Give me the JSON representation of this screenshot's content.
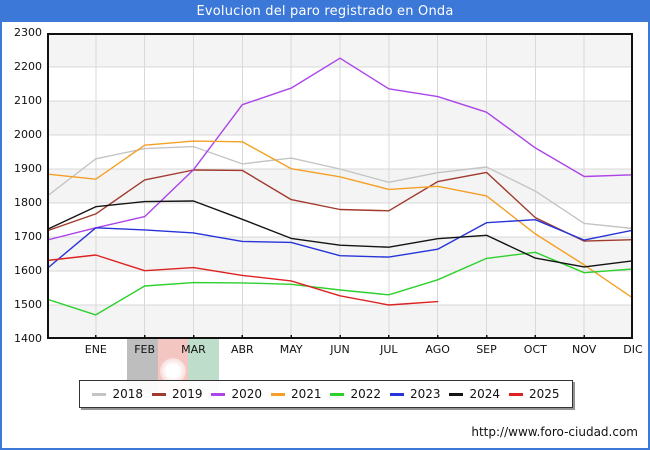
{
  "window": {
    "title": "Evolucion del paro registrado en Onda",
    "footer_url": "http://www.foro-ciudad.com",
    "accent_color": "#3b78d8"
  },
  "chart_data": {
    "type": "line",
    "title": "Evolucion del paro registrado en Onda",
    "x_tick_labels": [
      "ENE",
      "FEB",
      "MAR",
      "ABR",
      "MAY",
      "JUN",
      "JUL",
      "AGO",
      "SEP",
      "OCT",
      "NOV",
      "DIC"
    ],
    "note": "First point of each series sits on the left axis and represents December of the previous year",
    "y_axis": {
      "min": 1400,
      "max": 2300,
      "step": 100
    },
    "grid": true,
    "legend_position": "bottom",
    "plot_bands": {
      "shaded": "#f4f4f4",
      "plain": "#ffffff"
    },
    "grid_color": "#d9d9d9",
    "series": [
      {
        "name": "2018",
        "color": "#c4c4c4",
        "values": [
          1820,
          1930,
          1960,
          1966,
          1915,
          1932,
          1900,
          1861,
          1889,
          1906,
          1835,
          1740,
          1725
        ]
      },
      {
        "name": "2019",
        "color": "#a13a2d",
        "values": [
          1718,
          1768,
          1868,
          1897,
          1896,
          1810,
          1781,
          1777,
          1863,
          1890,
          1757,
          1688,
          1692
        ]
      },
      {
        "name": "2020",
        "color": "#ac44e8",
        "values": [
          1691,
          1727,
          1760,
          1898,
          2089,
          2138,
          2226,
          2136,
          2113,
          2067,
          1962,
          1878,
          1883
        ]
      },
      {
        "name": "2021",
        "color": "#f4a026",
        "values": [
          1885,
          1870,
          1970,
          1982,
          1980,
          1901,
          1877,
          1840,
          1849,
          1821,
          1709,
          1618,
          1520
        ]
      },
      {
        "name": "2022",
        "color": "#2ed02e",
        "values": [
          1517,
          1471,
          1556,
          1566,
          1565,
          1561,
          1544,
          1530,
          1574,
          1637,
          1655,
          1595,
          1606
        ]
      },
      {
        "name": "2023",
        "color": "#2734d8",
        "values": [
          1607,
          1727,
          1721,
          1712,
          1687,
          1684,
          1645,
          1641,
          1664,
          1742,
          1751,
          1691,
          1720
        ]
      },
      {
        "name": "2024",
        "color": "#141414",
        "values": [
          1722,
          1789,
          1804,
          1806,
          1752,
          1696,
          1676,
          1670,
          1695,
          1705,
          1638,
          1612,
          1630
        ]
      },
      {
        "name": "2025",
        "color": "#dd2222",
        "values": [
          1631,
          1647,
          1601,
          1610,
          1587,
          1571,
          1527,
          1500,
          1510
        ]
      }
    ]
  }
}
